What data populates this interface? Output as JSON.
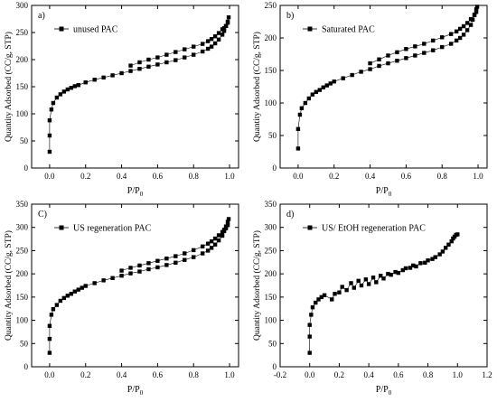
{
  "chart_data": [
    {
      "type": "scatter",
      "panel_label": "a)",
      "legend_label": "unused PAC",
      "xlabel_main": "P/P",
      "xlabel_sub": "0",
      "ylabel": "Quantity Adsorbed (CC/g,  STP)",
      "xlim": [
        -0.1,
        1.05
      ],
      "ylim": [
        0,
        300
      ],
      "xticks": [
        0.0,
        0.2,
        0.4,
        0.6,
        0.8,
        1.0
      ],
      "xtick_labels": [
        "0.0",
        "0.2",
        "0.4",
        "0.6",
        "0.8",
        "1.0"
      ],
      "yticks": [
        0,
        50,
        100,
        150,
        200,
        250,
        300
      ],
      "ytick_labels": [
        "0",
        "50",
        "100",
        "150",
        "200",
        "250",
        "300"
      ],
      "series": [
        {
          "values": [
            [
              0.0,
              30
            ],
            [
              0.0,
              60
            ],
            [
              0.0,
              88
            ],
            [
              0.01,
              108
            ],
            [
              0.02,
              120
            ],
            [
              0.04,
              130
            ],
            [
              0.06,
              136
            ],
            [
              0.08,
              141
            ],
            [
              0.1,
              145
            ],
            [
              0.12,
              148
            ],
            [
              0.14,
              151
            ],
            [
              0.16,
              153
            ],
            [
              0.2,
              158
            ],
            [
              0.25,
              163
            ],
            [
              0.3,
              167
            ],
            [
              0.35,
              171
            ],
            [
              0.4,
              175
            ],
            [
              0.45,
              179
            ],
            [
              0.5,
              183
            ],
            [
              0.55,
              187
            ],
            [
              0.6,
              191
            ],
            [
              0.65,
              195
            ],
            [
              0.7,
              199
            ],
            [
              0.75,
              204
            ],
            [
              0.8,
              209
            ],
            [
              0.85,
              215
            ],
            [
              0.88,
              220
            ],
            [
              0.9,
              224
            ],
            [
              0.92,
              230
            ],
            [
              0.94,
              237
            ],
            [
              0.96,
              246
            ],
            [
              0.97,
              253
            ],
            [
              0.98,
              262
            ],
            [
              0.99,
              270
            ],
            [
              0.995,
              278
            ],
            [
              0.99,
              268
            ],
            [
              0.98,
              262
            ],
            [
              0.97,
              258
            ],
            [
              0.96,
              256
            ],
            [
              0.94,
              249
            ],
            [
              0.92,
              243
            ],
            [
              0.9,
              238
            ],
            [
              0.88,
              234
            ],
            [
              0.85,
              229
            ],
            [
              0.8,
              224
            ],
            [
              0.75,
              219
            ],
            [
              0.7,
              214
            ],
            [
              0.65,
              209
            ],
            [
              0.6,
              204
            ],
            [
              0.55,
              200
            ],
            [
              0.5,
              195
            ],
            [
              0.45,
              189
            ]
          ]
        }
      ]
    },
    {
      "type": "scatter",
      "panel_label": "b)",
      "legend_label": "Saturated PAC",
      "xlabel_main": "P/P",
      "xlabel_sub": "0",
      "ylabel": "Quantity Adsorbed (CC/g,  STP)",
      "xlim": [
        -0.1,
        1.05
      ],
      "ylim": [
        0,
        250
      ],
      "xticks": [
        0.0,
        0.2,
        0.4,
        0.6,
        0.8,
        1.0
      ],
      "xtick_labels": [
        "0.0",
        "0.2",
        "0.4",
        "0.6",
        "0.8",
        "1.0"
      ],
      "yticks": [
        0,
        50,
        100,
        150,
        200,
        250
      ],
      "ytick_labels": [
        "0",
        "50",
        "100",
        "150",
        "200",
        "250"
      ],
      "series": [
        {
          "values": [
            [
              0.0,
              30
            ],
            [
              0.0,
              60
            ],
            [
              0.01,
              82
            ],
            [
              0.02,
              92
            ],
            [
              0.04,
              100
            ],
            [
              0.06,
              107
            ],
            [
              0.08,
              113
            ],
            [
              0.1,
              117
            ],
            [
              0.12,
              120
            ],
            [
              0.14,
              124
            ],
            [
              0.16,
              127
            ],
            [
              0.18,
              130
            ],
            [
              0.2,
              133
            ],
            [
              0.25,
              138
            ],
            [
              0.3,
              143
            ],
            [
              0.35,
              148
            ],
            [
              0.4,
              152
            ],
            [
              0.45,
              157
            ],
            [
              0.5,
              161
            ],
            [
              0.55,
              165
            ],
            [
              0.6,
              169
            ],
            [
              0.65,
              173
            ],
            [
              0.7,
              177
            ],
            [
              0.75,
              181
            ],
            [
              0.8,
              186
            ],
            [
              0.85,
              191
            ],
            [
              0.88,
              196
            ],
            [
              0.9,
              200
            ],
            [
              0.92,
              205
            ],
            [
              0.94,
              212
            ],
            [
              0.96,
              220
            ],
            [
              0.97,
              228
            ],
            [
              0.98,
              236
            ],
            [
              0.99,
              244
            ],
            [
              0.995,
              248
            ],
            [
              0.99,
              240
            ],
            [
              0.98,
              235
            ],
            [
              0.96,
              229
            ],
            [
              0.94,
              223
            ],
            [
              0.92,
              218
            ],
            [
              0.9,
              214
            ],
            [
              0.88,
              210
            ],
            [
              0.85,
              206
            ],
            [
              0.8,
              201
            ],
            [
              0.75,
              196
            ],
            [
              0.7,
              191
            ],
            [
              0.65,
              187
            ],
            [
              0.6,
              183
            ],
            [
              0.55,
              178
            ],
            [
              0.5,
              173
            ],
            [
              0.45,
              167
            ],
            [
              0.4,
              161
            ]
          ]
        }
      ]
    },
    {
      "type": "scatter",
      "panel_label": "C)",
      "legend_label": "US regeneration PAC",
      "xlabel_main": "P/P",
      "xlabel_sub": "0",
      "ylabel": "Quantity Adsorbed (CC/g,  STP)",
      "xlim": [
        -0.1,
        1.05
      ],
      "ylim": [
        0,
        350
      ],
      "xticks": [
        0.0,
        0.2,
        0.4,
        0.6,
        0.8,
        1.0
      ],
      "xtick_labels": [
        "0.0",
        "0.2",
        "0.4",
        "0.6",
        "0.8",
        "1.0"
      ],
      "yticks": [
        0,
        50,
        100,
        150,
        200,
        250,
        300,
        350
      ],
      "ytick_labels": [
        "0",
        "50",
        "100",
        "150",
        "200",
        "250",
        "300",
        "350"
      ],
      "series": [
        {
          "values": [
            [
              0.0,
              30
            ],
            [
              0.0,
              60
            ],
            [
              0.0,
              88
            ],
            [
              0.01,
              112
            ],
            [
              0.02,
              124
            ],
            [
              0.04,
              133
            ],
            [
              0.06,
              142
            ],
            [
              0.08,
              148
            ],
            [
              0.1,
              153
            ],
            [
              0.12,
              157
            ],
            [
              0.14,
              162
            ],
            [
              0.16,
              166
            ],
            [
              0.18,
              170
            ],
            [
              0.2,
              174
            ],
            [
              0.25,
              180
            ],
            [
              0.3,
              186
            ],
            [
              0.35,
              191
            ],
            [
              0.4,
              196
            ],
            [
              0.45,
              201
            ],
            [
              0.5,
              205
            ],
            [
              0.55,
              210
            ],
            [
              0.6,
              214
            ],
            [
              0.65,
              219
            ],
            [
              0.7,
              224
            ],
            [
              0.75,
              230
            ],
            [
              0.8,
              236
            ],
            [
              0.85,
              244
            ],
            [
              0.88,
              250
            ],
            [
              0.9,
              256
            ],
            [
              0.92,
              263
            ],
            [
              0.94,
              272
            ],
            [
              0.96,
              282
            ],
            [
              0.97,
              292
            ],
            [
              0.98,
              302
            ],
            [
              0.99,
              312
            ],
            [
              0.995,
              318
            ],
            [
              0.99,
              305
            ],
            [
              0.98,
              298
            ],
            [
              0.97,
              295
            ],
            [
              0.96,
              290
            ],
            [
              0.94,
              283
            ],
            [
              0.92,
              276
            ],
            [
              0.9,
              270
            ],
            [
              0.88,
              265
            ],
            [
              0.85,
              259
            ],
            [
              0.8,
              251
            ],
            [
              0.75,
              244
            ],
            [
              0.7,
              238
            ],
            [
              0.65,
              233
            ],
            [
              0.6,
              228
            ],
            [
              0.55,
              223
            ],
            [
              0.5,
              218
            ],
            [
              0.45,
              213
            ],
            [
              0.4,
              207
            ]
          ]
        }
      ]
    },
    {
      "type": "scatter",
      "panel_label": "d)",
      "legend_label": "US/ EtOH regeneration PAC",
      "xlabel_main": "P/P",
      "xlabel_sub": "0",
      "ylabel": "Quantity Adsorbed (CC/g,  STP)",
      "xlim": [
        -0.2,
        1.2
      ],
      "ylim": [
        0,
        350
      ],
      "xticks": [
        -0.2,
        0.0,
        0.2,
        0.4,
        0.6,
        0.8,
        1.0,
        1.2
      ],
      "xtick_labels": [
        "-0.2",
        "0.0",
        "0.2",
        "0.4",
        "0.6",
        "0.8",
        "1.0",
        "1.2"
      ],
      "yticks": [
        0,
        50,
        100,
        150,
        200,
        250,
        300,
        350
      ],
      "ytick_labels": [
        "0",
        "50",
        "100",
        "150",
        "200",
        "250",
        "300",
        "350"
      ],
      "series": [
        {
          "values": [
            [
              0.0,
              30
            ],
            [
              0.0,
              65
            ],
            [
              0.0,
              90
            ],
            [
              0.01,
              112
            ],
            [
              0.02,
              128
            ],
            [
              0.04,
              138
            ],
            [
              0.06,
              145
            ],
            [
              0.08,
              150
            ],
            [
              0.1,
              154
            ],
            [
              0.15,
              145
            ],
            [
              0.17,
              157
            ],
            [
              0.2,
              160
            ],
            [
              0.22,
              172
            ],
            [
              0.25,
              165
            ],
            [
              0.28,
              180
            ],
            [
              0.3,
              170
            ],
            [
              0.33,
              185
            ],
            [
              0.35,
              175
            ],
            [
              0.38,
              188
            ],
            [
              0.4,
              178
            ],
            [
              0.43,
              192
            ],
            [
              0.45,
              182
            ],
            [
              0.48,
              196
            ],
            [
              0.5,
              190
            ],
            [
              0.53,
              200
            ],
            [
              0.55,
              198
            ],
            [
              0.58,
              204
            ],
            [
              0.6,
              202
            ],
            [
              0.63,
              208
            ],
            [
              0.65,
              212
            ],
            [
              0.68,
              213
            ],
            [
              0.7,
              218
            ],
            [
              0.72,
              216
            ],
            [
              0.75,
              223
            ],
            [
              0.78,
              224
            ],
            [
              0.8,
              229
            ],
            [
              0.83,
              232
            ],
            [
              0.85,
              236
            ],
            [
              0.88,
              242
            ],
            [
              0.9,
              248
            ],
            [
              0.92,
              256
            ],
            [
              0.94,
              263
            ],
            [
              0.96,
              270
            ],
            [
              0.97,
              276
            ],
            [
              0.98,
              280
            ],
            [
              0.99,
              284
            ],
            [
              1.0,
              285
            ]
          ]
        }
      ]
    }
  ]
}
